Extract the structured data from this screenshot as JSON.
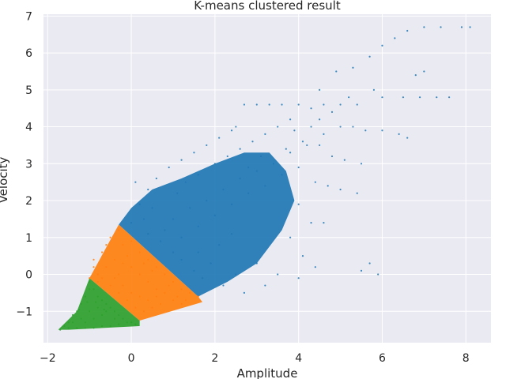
{
  "chart_data": {
    "type": "scatter",
    "title": "K-means clustered result",
    "xlabel": "Amplitude",
    "ylabel": "Velocity",
    "xlim": [
      -2.1,
      8.6
    ],
    "ylim": [
      -1.85,
      7.05
    ],
    "x_ticks": [
      -2,
      0,
      2,
      4,
      6,
      8
    ],
    "y_ticks": [
      -1,
      0,
      1,
      2,
      3,
      4,
      5,
      6,
      7
    ],
    "x_tick_labels": [
      "−2",
      "0",
      "2",
      "4",
      "6",
      "8"
    ],
    "y_tick_labels": [
      "−1",
      "0",
      "1",
      "2",
      "3",
      "4",
      "5",
      "6",
      "7"
    ],
    "grid": true,
    "legend": "none",
    "style": {
      "plot_background": "#eaeaf2",
      "grid_color": "#ffffff"
    },
    "series": [
      {
        "color": "#1f77b4",
        "description_of_region": "upper-right cluster above the line from (-0.3,1.3) to (1.6,-0.6)",
        "points": [
          [
            0.8,
            1.2
          ],
          [
            1.0,
            1.5
          ],
          [
            1.2,
            1.0
          ],
          [
            1.4,
            1.8
          ],
          [
            1.6,
            1.3
          ],
          [
            1.8,
            2.0
          ],
          [
            2.0,
            1.6
          ],
          [
            2.2,
            2.3
          ],
          [
            2.4,
            1.9
          ],
          [
            2.6,
            2.6
          ],
          [
            2.8,
            2.2
          ],
          [
            3.0,
            2.8
          ],
          [
            3.2,
            2.4
          ],
          [
            3.4,
            3.0
          ],
          [
            3.6,
            2.7
          ],
          [
            3.8,
            3.3
          ],
          [
            4.0,
            2.9
          ],
          [
            0.5,
            1.8
          ],
          [
            0.3,
            1.5
          ],
          [
            0.0,
            1.4
          ],
          [
            1.1,
            2.2
          ],
          [
            1.3,
            2.5
          ],
          [
            1.6,
            2.7
          ],
          [
            2.0,
            3.0
          ],
          [
            2.3,
            3.2
          ],
          [
            2.6,
            3.4
          ],
          [
            2.9,
            3.6
          ],
          [
            3.2,
            3.8
          ],
          [
            3.5,
            4.0
          ],
          [
            3.8,
            4.2
          ],
          [
            2.5,
            4.0
          ],
          [
            2.7,
            4.6
          ],
          [
            3.0,
            4.6
          ],
          [
            3.3,
            4.6
          ],
          [
            3.6,
            4.6
          ],
          [
            4.0,
            4.6
          ],
          [
            4.3,
            4.5
          ],
          [
            4.6,
            4.6
          ],
          [
            5.0,
            4.6
          ],
          [
            5.4,
            4.6
          ],
          [
            4.3,
            4.0
          ],
          [
            4.6,
            3.8
          ],
          [
            5.0,
            4.0
          ],
          [
            5.3,
            4.0
          ],
          [
            5.6,
            3.9
          ],
          [
            6.0,
            3.9
          ],
          [
            6.4,
            3.8
          ],
          [
            6.6,
            3.7
          ],
          [
            4.2,
            3.5
          ],
          [
            4.5,
            3.5
          ],
          [
            4.8,
            3.2
          ],
          [
            5.1,
            3.1
          ],
          [
            5.5,
            3.0
          ],
          [
            4.4,
            2.5
          ],
          [
            4.7,
            2.4
          ],
          [
            5.0,
            2.3
          ],
          [
            5.4,
            2.2
          ],
          [
            4.0,
            1.9
          ],
          [
            4.3,
            1.4
          ],
          [
            4.6,
            1.4
          ],
          [
            3.8,
            1.0
          ],
          [
            4.1,
            0.5
          ],
          [
            4.4,
            0.2
          ],
          [
            4.0,
            -0.1
          ],
          [
            3.5,
            0.0
          ],
          [
            3.0,
            0.3
          ],
          [
            2.5,
            0.0
          ],
          [
            2.2,
            -0.3
          ],
          [
            2.7,
            -0.5
          ],
          [
            3.2,
            -0.3
          ],
          [
            1.6,
            0.6
          ],
          [
            1.9,
            0.3
          ],
          [
            2.1,
            0.8
          ],
          [
            2.4,
            1.1
          ],
          [
            1.7,
            -0.1
          ],
          [
            1.5,
            0.1
          ],
          [
            1.2,
            0.4
          ],
          [
            1.0,
            0.6
          ],
          [
            0.7,
            0.9
          ],
          [
            0.4,
            1.1
          ],
          [
            4.5,
            5.0
          ],
          [
            4.9,
            5.5
          ],
          [
            5.3,
            5.6
          ],
          [
            5.7,
            5.9
          ],
          [
            6.0,
            6.2
          ],
          [
            6.3,
            6.4
          ],
          [
            6.6,
            6.6
          ],
          [
            7.0,
            6.7
          ],
          [
            7.4,
            6.7
          ],
          [
            7.9,
            6.7
          ],
          [
            8.1,
            6.7
          ],
          [
            6.8,
            5.4
          ],
          [
            7.0,
            5.5
          ],
          [
            6.5,
            4.8
          ],
          [
            6.9,
            4.8
          ],
          [
            7.3,
            4.8
          ],
          [
            7.6,
            4.8
          ],
          [
            6.0,
            4.8
          ],
          [
            5.8,
            5.0
          ],
          [
            5.2,
            4.8
          ],
          [
            5.7,
            0.3
          ],
          [
            5.9,
            0.0
          ],
          [
            5.5,
            0.1
          ],
          [
            4.5,
            4.2
          ],
          [
            4.8,
            4.4
          ],
          [
            3.9,
            3.9
          ],
          [
            4.1,
            3.6
          ],
          [
            3.7,
            3.4
          ],
          [
            3.1,
            3.2
          ],
          [
            2.8,
            2.9
          ],
          [
            0.2,
            1.9
          ],
          [
            0.4,
            2.3
          ],
          [
            0.6,
            2.6
          ],
          [
            0.9,
            2.9
          ],
          [
            1.2,
            3.1
          ],
          [
            1.5,
            3.3
          ],
          [
            1.8,
            3.5
          ],
          [
            2.1,
            3.7
          ],
          [
            2.4,
            3.9
          ],
          [
            0.1,
            2.5
          ]
        ]
      },
      {
        "color": "#ff7f0e",
        "description_of_region": "middle band between the two boundary lines",
        "points": [
          [
            -0.3,
            1.2
          ],
          [
            -0.5,
            1.0
          ],
          [
            -0.2,
            0.8
          ],
          [
            0.0,
            0.9
          ],
          [
            0.2,
            0.6
          ],
          [
            0.4,
            0.4
          ],
          [
            0.6,
            0.2
          ],
          [
            0.8,
            0.0
          ],
          [
            1.0,
            -0.2
          ],
          [
            1.2,
            -0.4
          ],
          [
            1.4,
            -0.5
          ],
          [
            1.6,
            -0.6
          ],
          [
            -0.7,
            0.6
          ],
          [
            -0.9,
            0.2
          ],
          [
            -1.0,
            -0.1
          ],
          [
            -0.8,
            0.0
          ],
          [
            -0.6,
            0.2
          ],
          [
            -0.4,
            0.4
          ],
          [
            -0.2,
            0.3
          ],
          [
            0.0,
            0.2
          ],
          [
            0.2,
            0.0
          ],
          [
            0.4,
            -0.2
          ],
          [
            0.6,
            -0.4
          ],
          [
            0.8,
            -0.5
          ],
          [
            1.0,
            -0.7
          ],
          [
            1.2,
            -0.8
          ],
          [
            -0.5,
            -0.3
          ],
          [
            -0.3,
            -0.5
          ],
          [
            -0.1,
            -0.7
          ],
          [
            0.1,
            -0.9
          ],
          [
            0.3,
            -1.0
          ],
          [
            0.5,
            -0.9
          ],
          [
            0.7,
            -0.8
          ],
          [
            -0.6,
            0.8
          ],
          [
            -0.1,
            0.5
          ],
          [
            0.3,
            0.3
          ],
          [
            0.5,
            0.1
          ],
          [
            0.9,
            -0.3
          ],
          [
            -0.8,
            -0.2
          ],
          [
            -0.4,
            -0.1
          ],
          [
            -0.2,
            -0.3
          ],
          [
            0.0,
            -0.5
          ],
          [
            0.2,
            -0.6
          ],
          [
            0.4,
            -0.7
          ],
          [
            0.6,
            -0.6
          ],
          [
            -0.9,
            0.4
          ],
          [
            -0.7,
            -0.1
          ],
          [
            1.1,
            -0.6
          ],
          [
            1.3,
            -0.7
          ],
          [
            -0.3,
            0.0
          ]
        ]
      },
      {
        "color": "#2ca02c",
        "description_of_region": "lower-left cluster below the line from (-1.0,-0.1) to (0.2,-1.2)",
        "points": [
          [
            -1.7,
            -1.5
          ],
          [
            -1.6,
            -1.4
          ],
          [
            -1.5,
            -1.3
          ],
          [
            -1.4,
            -1.1
          ],
          [
            -1.3,
            -1.0
          ],
          [
            -1.2,
            -0.8
          ],
          [
            -1.1,
            -0.6
          ],
          [
            -1.0,
            -0.4
          ],
          [
            -1.0,
            -0.2
          ],
          [
            -0.9,
            -0.4
          ],
          [
            -0.8,
            -0.6
          ],
          [
            -0.7,
            -0.7
          ],
          [
            -0.6,
            -0.8
          ],
          [
            -0.5,
            -0.9
          ],
          [
            -0.4,
            -1.0
          ],
          [
            -0.3,
            -1.1
          ],
          [
            -0.2,
            -1.2
          ],
          [
            -0.1,
            -1.3
          ],
          [
            0.0,
            -1.3
          ],
          [
            0.1,
            -1.35
          ],
          [
            -1.5,
            -1.45
          ],
          [
            -1.3,
            -1.45
          ],
          [
            -1.1,
            -1.45
          ],
          [
            -0.9,
            -1.45
          ],
          [
            -0.7,
            -1.4
          ],
          [
            -0.5,
            -1.4
          ],
          [
            -0.3,
            -1.35
          ],
          [
            -1.4,
            -1.3
          ],
          [
            -1.2,
            -1.2
          ],
          [
            -1.0,
            -1.0
          ],
          [
            -0.8,
            -0.9
          ],
          [
            -0.6,
            -1.0
          ],
          [
            -0.4,
            -1.2
          ],
          [
            -1.1,
            -1.3
          ],
          [
            -0.9,
            -1.2
          ],
          [
            -0.7,
            -1.1
          ],
          [
            -1.25,
            -0.95
          ],
          [
            -1.05,
            -0.75
          ],
          [
            -0.85,
            -0.75
          ],
          [
            -0.65,
            -0.95
          ]
        ]
      }
    ]
  }
}
